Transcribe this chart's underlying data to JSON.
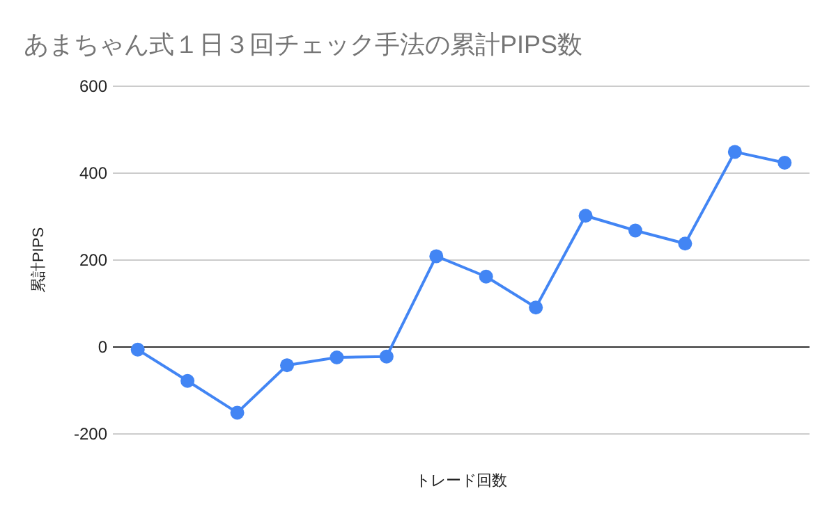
{
  "chart_data": {
    "type": "line",
    "title": "あまちゃん式１日３回チェック手法の累計PIPS数",
    "xlabel": "トレード回数",
    "ylabel": "累計PIPS",
    "categories": [
      null,
      null,
      null,
      null,
      null,
      null,
      null,
      null,
      null,
      null,
      null,
      null,
      null,
      null
    ],
    "series": [
      {
        "color": "#4285f4",
        "values": [
          -6,
          -78,
          -151,
          -42,
          -24,
          -22,
          209,
          162,
          91,
          302,
          268,
          238,
          449,
          424
        ]
      }
    ],
    "ylim": [
      -200,
      600
    ],
    "yticks": [
      -200,
      0,
      200,
      400,
      600
    ],
    "grid": "y",
    "marker": "circle",
    "line_style": "solid"
  }
}
